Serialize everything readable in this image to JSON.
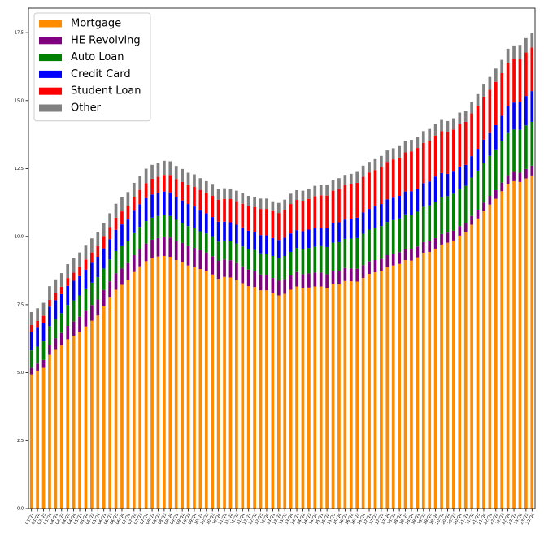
{
  "chart_data": {
    "type": "stacked_bar",
    "categories": [
      "03:Q1",
      "03:Q2",
      "03:Q3",
      "03:Q4",
      "04:Q1",
      "04:Q2",
      "04:Q3",
      "04:Q4",
      "05:Q1",
      "05:Q2",
      "05:Q3",
      "05:Q4",
      "06:Q1",
      "06:Q2",
      "06:Q3",
      "06:Q4",
      "07:Q1",
      "07:Q2",
      "07:Q3",
      "07:Q4",
      "08:Q1",
      "08:Q2",
      "08:Q3",
      "08:Q4",
      "09:Q1",
      "09:Q2",
      "09:Q3",
      "09:Q4",
      "10:Q1",
      "10:Q2",
      "10:Q3",
      "10:Q4",
      "11:Q1",
      "11:Q2",
      "11:Q3",
      "11:Q4",
      "12:Q1",
      "12:Q2",
      "12:Q3",
      "12:Q4",
      "13:Q1",
      "13:Q2",
      "13:Q3",
      "13:Q4",
      "14:Q1",
      "14:Q2",
      "14:Q3",
      "14:Q4",
      "15:Q1",
      "15:Q2",
      "15:Q3",
      "15:Q4",
      "16:Q1",
      "16:Q2",
      "16:Q3",
      "16:Q4",
      "17:Q1",
      "17:Q2",
      "17:Q3",
      "17:Q4",
      "18:Q1",
      "18:Q2",
      "18:Q3",
      "18:Q4",
      "19:Q1",
      "19:Q2",
      "19:Q3",
      "19:Q4",
      "20:Q1",
      "20:Q2",
      "20:Q3",
      "20:Q4",
      "21:Q1",
      "21:Q2",
      "21:Q3",
      "21:Q4",
      "22:Q1",
      "22:Q2",
      "22:Q3",
      "22:Q4",
      "23:Q1",
      "23:Q2",
      "23:Q3",
      "23:Q4"
    ],
    "series": [
      {
        "name": "Mortgage",
        "color": "#ff8c00",
        "values": [
          4.94,
          5.08,
          5.18,
          5.66,
          5.84,
          6.0,
          6.23,
          6.36,
          6.51,
          6.7,
          6.91,
          7.1,
          7.44,
          7.76,
          8.05,
          8.23,
          8.42,
          8.7,
          8.91,
          9.1,
          9.23,
          9.27,
          9.29,
          9.26,
          9.14,
          9.06,
          8.94,
          8.88,
          8.81,
          8.74,
          8.61,
          8.45,
          8.52,
          8.5,
          8.4,
          8.29,
          8.18,
          8.15,
          8.03,
          8.03,
          7.93,
          7.84,
          7.9,
          8.05,
          8.17,
          8.1,
          8.13,
          8.17,
          8.17,
          8.12,
          8.26,
          8.25,
          8.37,
          8.36,
          8.35,
          8.48,
          8.63,
          8.69,
          8.74,
          8.88,
          8.94,
          9.0,
          9.14,
          9.12,
          9.24,
          9.41,
          9.44,
          9.56,
          9.71,
          9.78,
          9.86,
          10.04,
          10.16,
          10.44,
          10.67,
          10.93,
          11.18,
          11.39,
          11.67,
          11.92,
          12.04,
          12.01,
          12.14,
          12.25
        ]
      },
      {
        "name": "HE Revolving",
        "color": "#800080",
        "values": [
          0.24,
          0.26,
          0.29,
          0.35,
          0.42,
          0.46,
          0.49,
          0.53,
          0.55,
          0.57,
          0.58,
          0.59,
          0.6,
          0.6,
          0.6,
          0.6,
          0.61,
          0.62,
          0.63,
          0.65,
          0.66,
          0.68,
          0.69,
          0.71,
          0.71,
          0.71,
          0.71,
          0.71,
          0.69,
          0.68,
          0.67,
          0.66,
          0.64,
          0.63,
          0.63,
          0.62,
          0.61,
          0.59,
          0.58,
          0.56,
          0.55,
          0.54,
          0.54,
          0.53,
          0.53,
          0.52,
          0.52,
          0.51,
          0.51,
          0.5,
          0.49,
          0.49,
          0.48,
          0.47,
          0.47,
          0.47,
          0.46,
          0.45,
          0.44,
          0.44,
          0.44,
          0.43,
          0.42,
          0.41,
          0.4,
          0.39,
          0.39,
          0.39,
          0.39,
          0.37,
          0.36,
          0.35,
          0.34,
          0.32,
          0.32,
          0.32,
          0.32,
          0.32,
          0.32,
          0.34,
          0.34,
          0.34,
          0.35,
          0.36
        ]
      },
      {
        "name": "Auto Loan",
        "color": "#008000",
        "values": [
          0.64,
          0.62,
          0.68,
          0.7,
          0.72,
          0.73,
          0.77,
          0.77,
          0.78,
          0.8,
          0.82,
          0.82,
          0.79,
          0.8,
          0.82,
          0.82,
          0.8,
          0.81,
          0.82,
          0.82,
          0.81,
          0.81,
          0.81,
          0.79,
          0.77,
          0.74,
          0.74,
          0.72,
          0.7,
          0.7,
          0.71,
          0.71,
          0.7,
          0.71,
          0.72,
          0.73,
          0.75,
          0.77,
          0.78,
          0.78,
          0.81,
          0.83,
          0.85,
          0.86,
          0.88,
          0.91,
          0.93,
          0.95,
          0.97,
          1.0,
          1.03,
          1.06,
          1.07,
          1.1,
          1.13,
          1.16,
          1.17,
          1.19,
          1.21,
          1.22,
          1.23,
          1.24,
          1.26,
          1.27,
          1.28,
          1.3,
          1.32,
          1.33,
          1.35,
          1.34,
          1.36,
          1.37,
          1.37,
          1.41,
          1.44,
          1.46,
          1.47,
          1.5,
          1.52,
          1.55,
          1.56,
          1.58,
          1.6,
          1.61
        ]
      },
      {
        "name": "Credit Card",
        "color": "#0000ff",
        "values": [
          0.69,
          0.69,
          0.69,
          0.72,
          0.69,
          0.7,
          0.7,
          0.72,
          0.71,
          0.72,
          0.73,
          0.75,
          0.74,
          0.75,
          0.78,
          0.8,
          0.8,
          0.82,
          0.83,
          0.85,
          0.85,
          0.86,
          0.87,
          0.87,
          0.84,
          0.82,
          0.81,
          0.8,
          0.76,
          0.74,
          0.73,
          0.73,
          0.69,
          0.69,
          0.69,
          0.7,
          0.68,
          0.67,
          0.67,
          0.68,
          0.66,
          0.67,
          0.67,
          0.68,
          0.66,
          0.67,
          0.68,
          0.7,
          0.68,
          0.7,
          0.71,
          0.73,
          0.71,
          0.73,
          0.75,
          0.78,
          0.76,
          0.78,
          0.81,
          0.83,
          0.82,
          0.83,
          0.84,
          0.87,
          0.85,
          0.87,
          0.88,
          0.93,
          0.89,
          0.82,
          0.81,
          0.82,
          0.77,
          0.79,
          0.8,
          0.86,
          0.84,
          0.89,
          0.93,
          0.99,
          0.99,
          1.03,
          1.08,
          1.13
        ]
      },
      {
        "name": "Student Loan",
        "color": "#ff0000",
        "values": [
          0.24,
          0.25,
          0.25,
          0.25,
          0.26,
          0.27,
          0.29,
          0.3,
          0.36,
          0.37,
          0.38,
          0.39,
          0.43,
          0.44,
          0.45,
          0.48,
          0.51,
          0.52,
          0.53,
          0.55,
          0.58,
          0.58,
          0.61,
          0.64,
          0.66,
          0.68,
          0.69,
          0.72,
          0.76,
          0.76,
          0.78,
          0.81,
          0.84,
          0.85,
          0.87,
          0.87,
          0.9,
          0.91,
          0.96,
          0.97,
          0.99,
          0.99,
          1.03,
          1.08,
          1.11,
          1.12,
          1.13,
          1.16,
          1.19,
          1.19,
          1.2,
          1.23,
          1.26,
          1.26,
          1.28,
          1.31,
          1.34,
          1.34,
          1.36,
          1.38,
          1.41,
          1.41,
          1.44,
          1.46,
          1.49,
          1.48,
          1.5,
          1.51,
          1.54,
          1.54,
          1.55,
          1.56,
          1.58,
          1.57,
          1.58,
          1.58,
          1.59,
          1.59,
          1.57,
          1.6,
          1.6,
          1.57,
          1.6,
          1.6
        ]
      },
      {
        "name": "Other",
        "color": "#808080",
        "values": [
          0.48,
          0.47,
          0.48,
          0.5,
          0.5,
          0.5,
          0.51,
          0.52,
          0.51,
          0.51,
          0.52,
          0.53,
          0.5,
          0.51,
          0.51,
          0.52,
          0.5,
          0.51,
          0.52,
          0.53,
          0.51,
          0.51,
          0.52,
          0.5,
          0.48,
          0.48,
          0.46,
          0.46,
          0.43,
          0.42,
          0.41,
          0.4,
          0.39,
          0.39,
          0.38,
          0.39,
          0.38,
          0.38,
          0.38,
          0.38,
          0.36,
          0.37,
          0.37,
          0.38,
          0.36,
          0.37,
          0.38,
          0.38,
          0.37,
          0.38,
          0.38,
          0.39,
          0.38,
          0.39,
          0.4,
          0.41,
          0.39,
          0.4,
          0.41,
          0.42,
          0.41,
          0.42,
          0.42,
          0.43,
          0.42,
          0.43,
          0.43,
          0.43,
          0.41,
          0.4,
          0.41,
          0.42,
          0.4,
          0.43,
          0.43,
          0.47,
          0.47,
          0.49,
          0.49,
          0.51,
          0.5,
          0.52,
          0.53,
          0.55
        ]
      }
    ],
    "ylim": [
      0,
      18.4
    ],
    "yticks": [
      {
        "value": 0,
        "label": "0.0"
      },
      2.5,
      {
        "value": 5,
        "label": "5.0"
      },
      7.5,
      {
        "value": 10,
        "label": "10.0"
      },
      12.5,
      {
        "value": 15,
        "label": "15.0"
      },
      17.5
    ],
    "legend": "upper left"
  }
}
